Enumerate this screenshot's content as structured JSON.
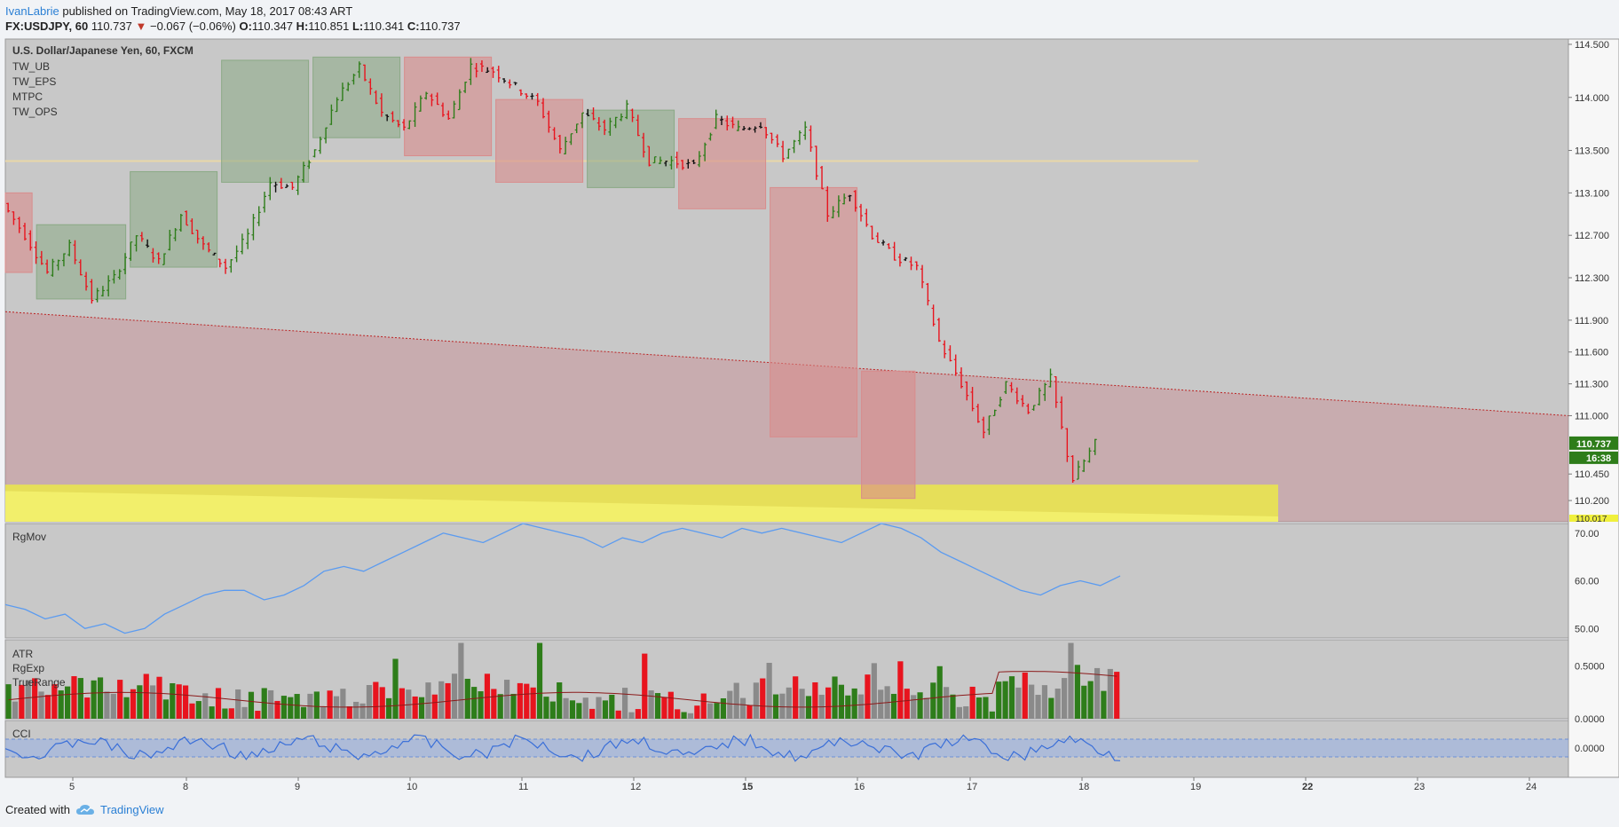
{
  "header": {
    "author": "IvanLabrie",
    "published": "published on TradingView.com, May 18, 2017 08:43 ART",
    "symbol": "FX:USDJPY, 60",
    "last": "110.737",
    "change": "−0.067 (−0.06%)",
    "o_label": "O:",
    "o": "110.347",
    "h_label": "H:",
    "h": "110.851",
    "l_label": "L:",
    "l": "110.341",
    "c_label": "C:",
    "c": "110.737"
  },
  "footer": {
    "created": "Created with",
    "brand": "TradingView"
  },
  "icons": {
    "footer_logo": "tradingview-cloud-icon",
    "change_arrow": "triangle-down-icon"
  },
  "colors": {
    "panel_bg": "#c8c8c8",
    "up": "#2e7d1a",
    "down": "#e8141e",
    "neutral": "#111111",
    "green_box": "#8aa985",
    "red_box": "#d98c8c",
    "zone": "#f0f03c",
    "line_blue": "#5b9bf0",
    "last_price": "#2e7d1a"
  },
  "chart_data": {
    "type": "candlestick",
    "title": "U.S. Dollar/Japanese Yen, 60, FXCM",
    "indicators": [
      "TW_UB",
      "TW_EPS",
      "MTPC",
      "TW_OPS"
    ],
    "x_tick_labels": [
      "5",
      "8",
      "9",
      "10",
      "11",
      "12",
      "15",
      "16",
      "17",
      "18",
      "19",
      "22",
      "23",
      "24"
    ],
    "y_tick_labels": [
      "114.500",
      "114.000",
      "113.500",
      "113.100",
      "112.700",
      "112.300",
      "111.900",
      "111.600",
      "111.300",
      "111.000",
      "110.450",
      "110.200"
    ],
    "y_range": [
      110.0,
      114.55
    ],
    "last_price_label": "110.737",
    "countdown_label": "16:38",
    "zone_price_label": "110.017",
    "horizontal_level": 113.4,
    "trendline": {
      "start": 111.98,
      "end": 111.0
    },
    "ohlc_path": [
      113.0,
      112.7,
      112.35,
      112.6,
      112.1,
      112.3,
      112.7,
      112.45,
      112.9,
      112.6,
      112.4,
      112.7,
      113.2,
      113.15,
      113.5,
      114.0,
      114.28,
      113.85,
      113.7,
      114.05,
      113.8,
      114.3,
      114.25,
      114.1,
      113.95,
      113.5,
      113.85,
      113.7,
      113.9,
      113.4,
      113.4,
      113.35,
      113.8,
      113.7,
      113.75,
      113.45,
      113.7,
      112.9,
      113.1,
      112.7,
      112.5,
      112.4,
      111.7,
      111.3,
      110.85,
      111.3,
      111.05,
      111.35,
      110.4,
      110.74
    ],
    "range_boxes": [
      {
        "side": "bearish",
        "from": 0,
        "to": 1.2,
        "high": 113.1,
        "low": 112.35
      },
      {
        "side": "bullish",
        "from": 1.4,
        "to": 5.4,
        "high": 112.8,
        "low": 112.1
      },
      {
        "side": "bullish",
        "from": 5.6,
        "to": 9.5,
        "high": 113.3,
        "low": 112.4
      },
      {
        "side": "bullish",
        "from": 9.7,
        "to": 13.6,
        "high": 114.35,
        "low": 113.2
      },
      {
        "side": "bullish",
        "from": 13.8,
        "to": 17.7,
        "high": 114.38,
        "low": 113.62
      },
      {
        "side": "bearish",
        "from": 17.9,
        "to": 21.8,
        "high": 114.38,
        "low": 113.45
      },
      {
        "side": "bearish",
        "from": 22.0,
        "to": 25.9,
        "high": 113.98,
        "low": 113.2
      },
      {
        "side": "bullish",
        "from": 26.1,
        "to": 30.0,
        "high": 113.88,
        "low": 113.15
      },
      {
        "side": "bearish",
        "from": 30.2,
        "to": 34.1,
        "high": 113.8,
        "low": 112.95
      },
      {
        "side": "bearish",
        "from": 34.3,
        "to": 38.2,
        "high": 113.15,
        "low": 110.8
      },
      {
        "side": "bearish",
        "from": 38.4,
        "to": 40.8,
        "high": 111.42,
        "low": 110.22
      }
    ],
    "supply_zone": {
      "high": 110.35,
      "low": 110.0
    },
    "subpanels": {
      "rgmov": {
        "label": "RgMov",
        "y_tick_labels": [
          "70.00",
          "60.00",
          "50.00"
        ],
        "y_range": [
          48,
          72
        ],
        "values": [
          55,
          54,
          52,
          53,
          50,
          51,
          49,
          50,
          53,
          55,
          57,
          58,
          58,
          56,
          57,
          59,
          62,
          63,
          62,
          64,
          66,
          68,
          70,
          69,
          68,
          70,
          72,
          71,
          70,
          69,
          67,
          69,
          68,
          70,
          71,
          70,
          69,
          71,
          70,
          71,
          70,
          69,
          68,
          70,
          72,
          71,
          69,
          66,
          64,
          62,
          60,
          58,
          57,
          59,
          60,
          59,
          61
        ]
      },
      "atr": {
        "labels": [
          "ATR",
          "RgExp",
          "TrueRange"
        ],
        "y_tick_labels": [
          "0.5000",
          "0.0000"
        ],
        "y_range": [
          0,
          0.75
        ]
      },
      "cci": {
        "label": "CCI",
        "y_tick_labels": [
          "0.0000"
        ]
      }
    }
  }
}
